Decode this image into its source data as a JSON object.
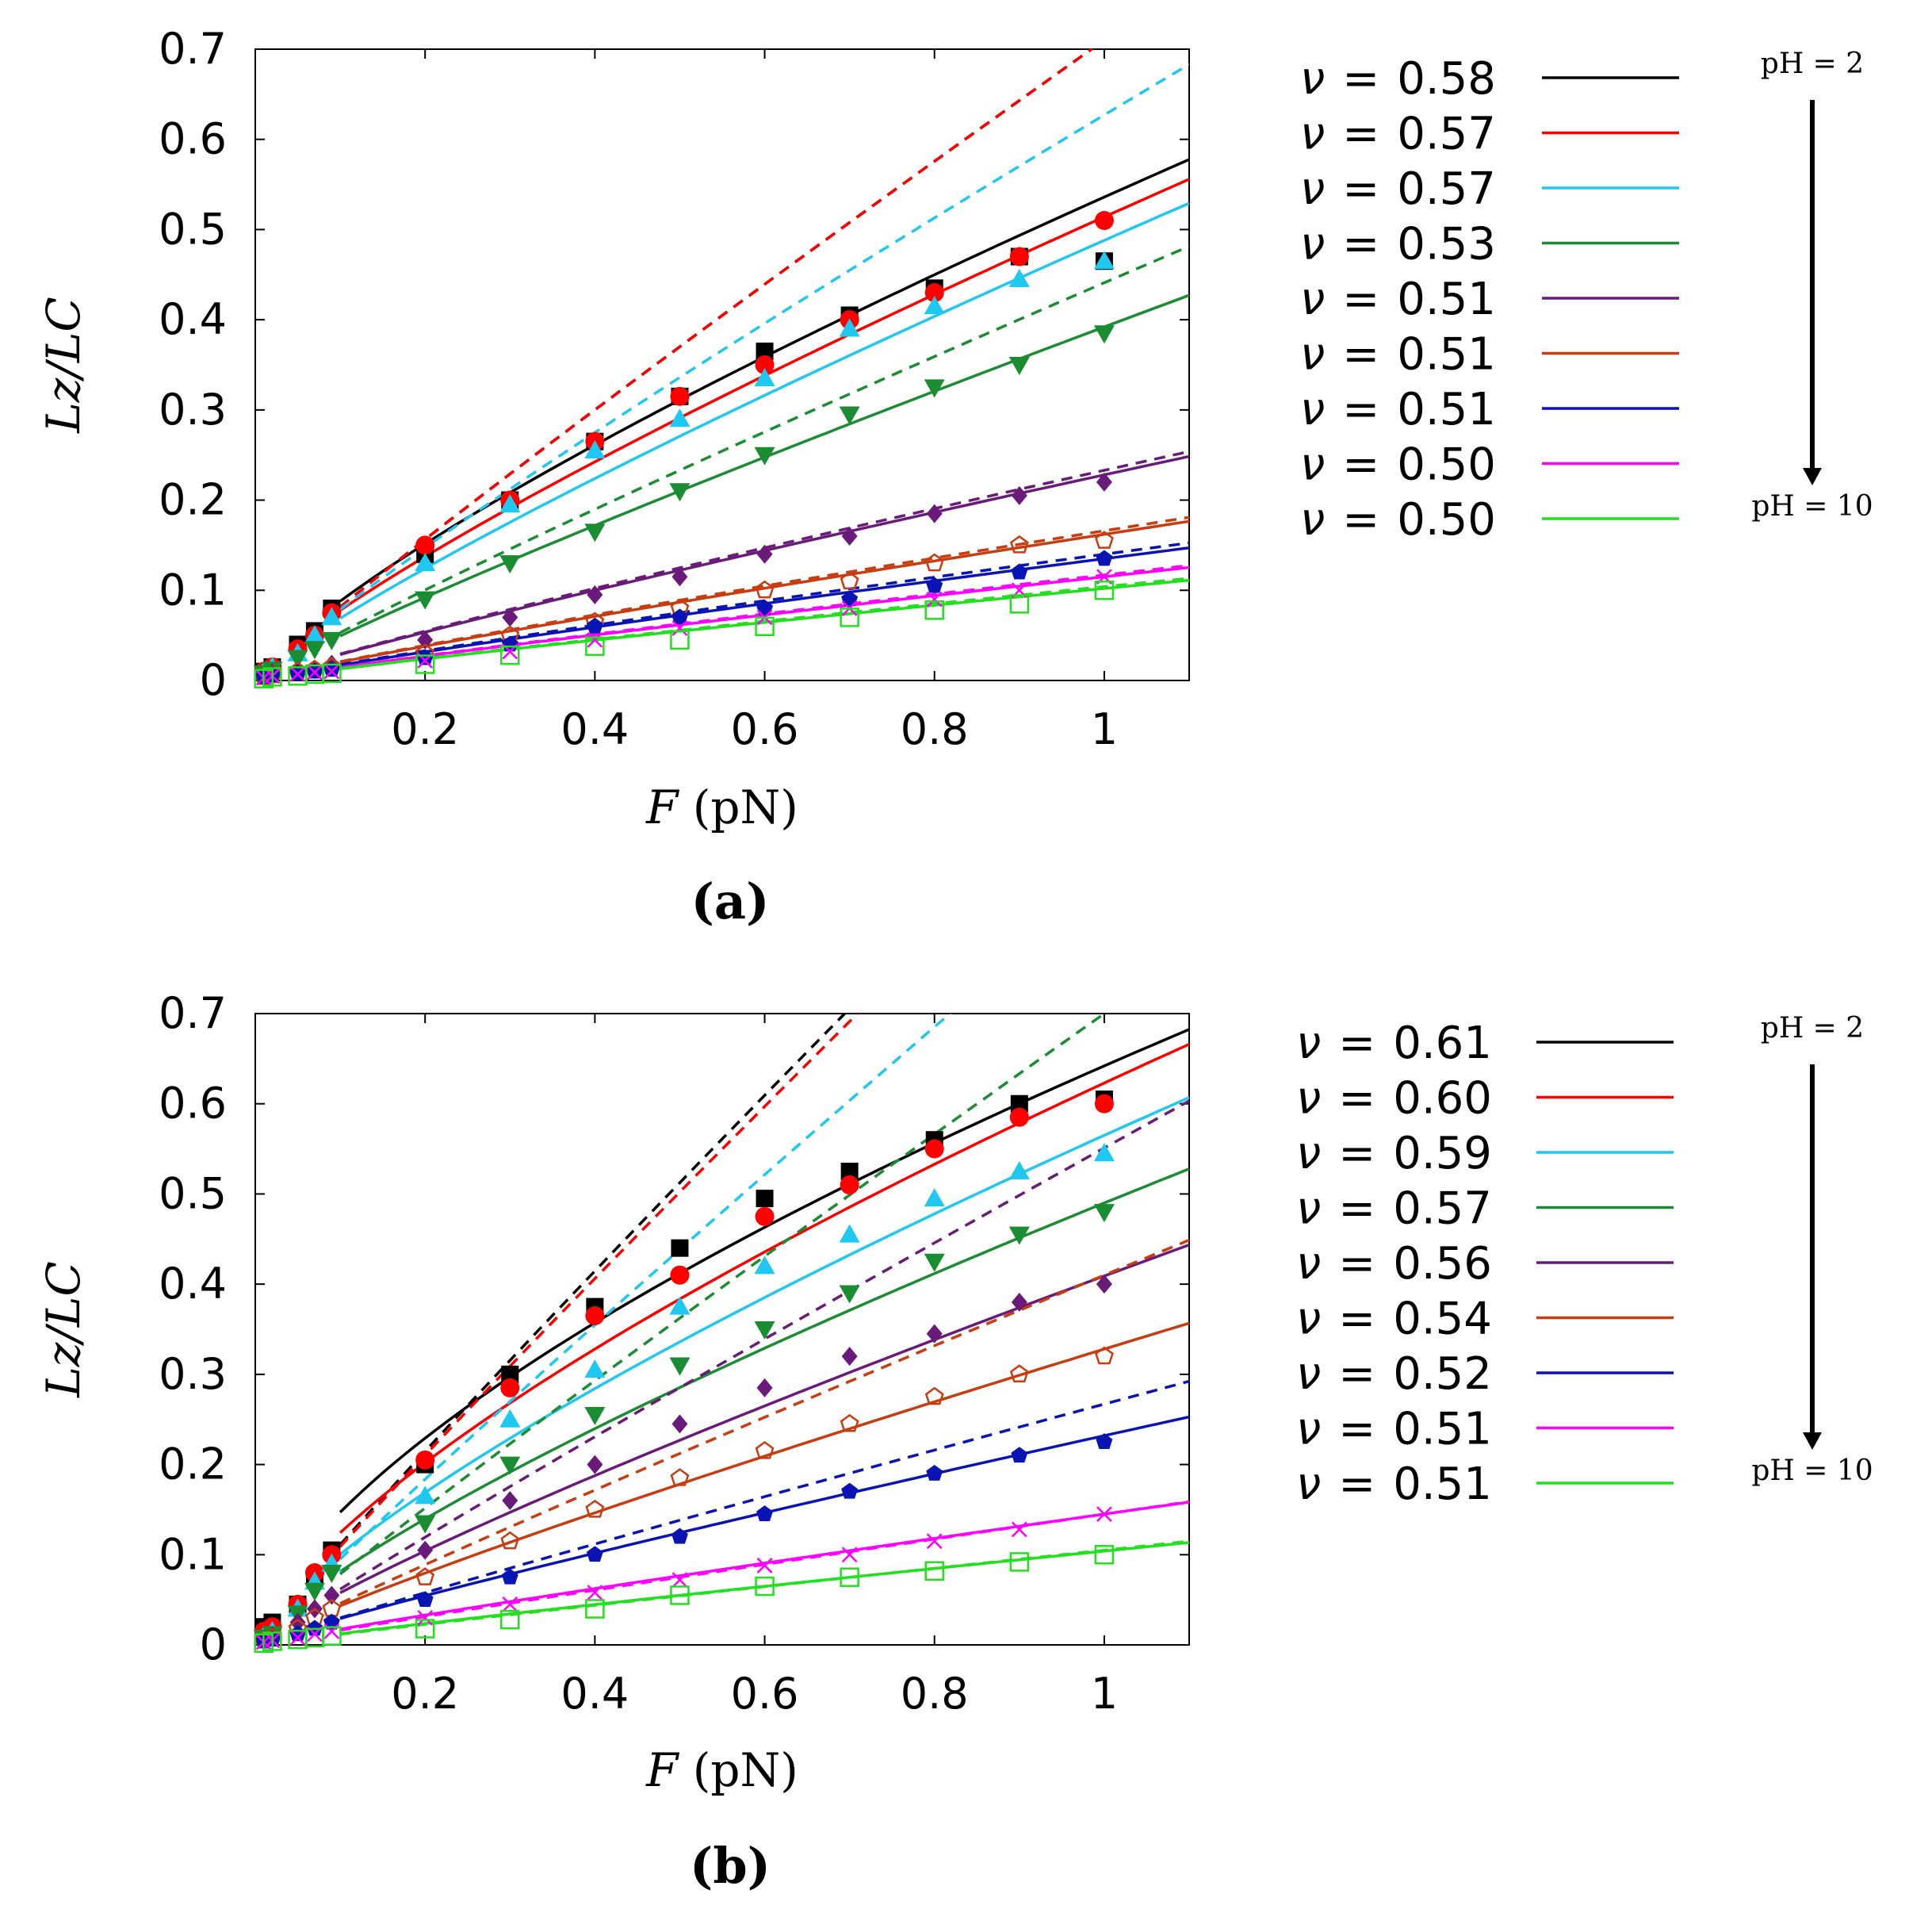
{
  "x_ticks": [
    {
      "label": "0.2",
      "value": 0.2
    },
    {
      "label": "0.4",
      "value": 0.4
    },
    {
      "label": "0.6",
      "value": 0.6
    },
    {
      "label": "0.8",
      "value": 0.8
    },
    {
      "label": "1",
      "value": 1.0
    }
  ],
  "y_ticks": [
    {
      "label": "0",
      "value": 0.0
    },
    {
      "label": "0.1",
      "value": 0.1
    },
    {
      "label": "0.2",
      "value": 0.2
    },
    {
      "label": "0.3",
      "value": 0.3
    },
    {
      "label": "0.4",
      "value": 0.4
    },
    {
      "label": "0.5",
      "value": 0.5
    },
    {
      "label": "0.6",
      "value": 0.6
    },
    {
      "label": "0.7",
      "value": 0.7
    }
  ],
  "x_all": [
    0.01,
    0.02,
    0.05,
    0.07,
    0.09,
    0.2,
    0.3,
    0.4,
    0.5,
    0.6,
    0.7,
    0.8,
    0.9,
    1.0
  ],
  "chart_data": [
    {
      "type": "scatter",
      "panel_label": "(a)",
      "xlabel_italic": "F",
      "xlabel_rest": " (pN)",
      "ylabel": "Lz/LC",
      "xlim": [
        0,
        1.1
      ],
      "ylim": [
        0,
        0.7
      ],
      "legend_symbol": "ν",
      "ph_top": "pH = 2",
      "ph_bottom": "pH = 10",
      "series": [
        {
          "name": "ν = 0.58",
          "nu": "0.58",
          "color": "#000000",
          "marker": "square",
          "filled": true,
          "y": [
            0.01,
            0.015,
            0.04,
            0.055,
            0.08,
            0.14,
            0.2,
            0.265,
            0.315,
            0.365,
            0.405,
            0.435,
            0.47,
            0.465
          ],
          "fit_a": 0.536,
          "fit_b": 0.785,
          "dash_a": 0.71,
          "dash_b": 0.94
        },
        {
          "name": "ν = 0.57",
          "nu": "0.57",
          "color": "#ff0000",
          "marker": "circle",
          "filled": true,
          "y": [
            0.01,
            0.015,
            0.035,
            0.05,
            0.075,
            0.15,
            0.2,
            0.265,
            0.315,
            0.35,
            0.4,
            0.43,
            0.47,
            0.51
          ],
          "fit_a": 0.514,
          "fit_b": 0.82,
          "dash_a": 0.71,
          "dash_b": 0.94
        },
        {
          "name": "ν = 0.57",
          "nu": "0.57",
          "color": "#1ec8f0",
          "marker": "triangle-up",
          "filled": true,
          "y": [
            0.01,
            0.015,
            0.03,
            0.05,
            0.07,
            0.13,
            0.195,
            0.255,
            0.29,
            0.335,
            0.39,
            0.415,
            0.445,
            0.465
          ],
          "fit_a": 0.488,
          "fit_b": 0.85,
          "dash_a": 0.627,
          "dash_b": 0.9
        },
        {
          "name": "ν = 0.53",
          "nu": "0.53",
          "color": "#1a8c32",
          "marker": "triangle-down",
          "filled": true,
          "y": [
            0.008,
            0.012,
            0.025,
            0.035,
            0.045,
            0.09,
            0.13,
            0.165,
            0.21,
            0.25,
            0.295,
            0.325,
            0.35,
            0.385
          ],
          "fit_a": 0.392,
          "fit_b": 0.9,
          "dash_a": 0.441,
          "dash_b": 0.92
        },
        {
          "name": "ν = 0.51",
          "nu": "0.51",
          "color": "#6a1b7a",
          "marker": "diamond",
          "filled": true,
          "y": [
            0.005,
            0.008,
            0.01,
            0.012,
            0.018,
            0.045,
            0.07,
            0.095,
            0.115,
            0.14,
            0.16,
            0.185,
            0.205,
            0.22
          ],
          "fit_a": 0.228,
          "fit_b": 0.9,
          "dash_a": 0.233,
          "dash_b": 0.9
        },
        {
          "name": "ν = 0.51",
          "nu": "0.51",
          "color": "#c83c10",
          "marker": "pentagon",
          "filled": false,
          "y": [
            0.004,
            0.006,
            0.01,
            0.012,
            0.015,
            0.03,
            0.05,
            0.065,
            0.08,
            0.1,
            0.11,
            0.13,
            0.15,
            0.155
          ],
          "fit_a": 0.162,
          "fit_b": 0.9,
          "dash_a": 0.166,
          "dash_b": 0.9
        },
        {
          "name": "ν = 0.51",
          "nu": "0.51",
          "color": "#0a14b4",
          "marker": "pentagon",
          "filled": true,
          "y": [
            0.004,
            0.006,
            0.008,
            0.01,
            0.012,
            0.025,
            0.04,
            0.06,
            0.07,
            0.08,
            0.09,
            0.105,
            0.12,
            0.135
          ],
          "fit_a": 0.135,
          "fit_b": 0.9,
          "dash_a": 0.14,
          "dash_b": 0.9
        },
        {
          "name": "ν = 0.50",
          "nu": "0.50",
          "color": "#ff00ff",
          "marker": "x",
          "filled": false,
          "y": [
            0.003,
            0.005,
            0.007,
            0.009,
            0.01,
            0.022,
            0.032,
            0.045,
            0.058,
            0.07,
            0.08,
            0.09,
            0.1,
            0.115
          ],
          "fit_a": 0.115,
          "fit_b": 0.9,
          "dash_a": 0.117,
          "dash_b": 0.9
        },
        {
          "name": "ν = 0.50",
          "nu": "0.50",
          "color": "#22e01e",
          "marker": "square",
          "filled": false,
          "y": [
            0.002,
            0.004,
            0.005,
            0.007,
            0.008,
            0.018,
            0.028,
            0.038,
            0.045,
            0.06,
            0.07,
            0.078,
            0.085,
            0.1
          ],
          "fit_a": 0.102,
          "fit_b": 0.9,
          "dash_a": 0.104,
          "dash_b": 0.9
        }
      ]
    },
    {
      "type": "scatter",
      "panel_label": "(b)",
      "xlabel_italic": "F",
      "xlabel_rest": " (pN)",
      "ylabel": "Lz/LC",
      "xlim": [
        0,
        1.1
      ],
      "ylim": [
        0,
        0.7
      ],
      "legend_symbol": "ν",
      "ph_top": "pH = 2",
      "ph_bottom": "pH = 10",
      "series": [
        {
          "name": "ν = 0.61",
          "nu": "0.61",
          "color": "#000000",
          "marker": "square",
          "filled": true,
          "y": [
            0.02,
            0.025,
            0.045,
            0.075,
            0.105,
            0.2,
            0.3,
            0.375,
            0.44,
            0.495,
            0.525,
            0.56,
            0.6,
            0.605
          ],
          "fit_a": 0.642,
          "fit_b": 0.64,
          "dash_a": 0.99,
          "dash_b": 0.95
        },
        {
          "name": "ν = 0.60",
          "nu": "0.60",
          "color": "#ff0000",
          "marker": "circle",
          "filled": true,
          "y": [
            0.015,
            0.02,
            0.045,
            0.08,
            0.1,
            0.205,
            0.285,
            0.365,
            0.41,
            0.475,
            0.51,
            0.55,
            0.585,
            0.6
          ],
          "fit_a": 0.623,
          "fit_b": 0.7,
          "dash_a": 0.97,
          "dash_b": 0.95
        },
        {
          "name": "ν = 0.59",
          "nu": "0.59",
          "color": "#1ec8f0",
          "marker": "triangle-up",
          "filled": true,
          "y": [
            0.01,
            0.015,
            0.04,
            0.07,
            0.09,
            0.165,
            0.25,
            0.305,
            0.375,
            0.42,
            0.455,
            0.495,
            0.525,
            0.545
          ],
          "fit_a": 0.565,
          "fit_b": 0.75,
          "dash_a": 0.847,
          "dash_b": 0.95
        },
        {
          "name": "ν = 0.57",
          "nu": "0.57",
          "color": "#1a8c32",
          "marker": "triangle-down",
          "filled": true,
          "y": [
            0.008,
            0.012,
            0.035,
            0.06,
            0.08,
            0.135,
            0.2,
            0.255,
            0.31,
            0.35,
            0.39,
            0.425,
            0.455,
            0.48
          ],
          "fit_a": 0.49,
          "fit_b": 0.78,
          "dash_a": 0.7,
          "dash_b": 0.95
        },
        {
          "name": "ν = 0.56",
          "nu": "0.56",
          "color": "#6a1b7a",
          "marker": "diamond",
          "filled": true,
          "y": [
            0.006,
            0.01,
            0.025,
            0.04,
            0.055,
            0.105,
            0.16,
            0.2,
            0.245,
            0.285,
            0.32,
            0.345,
            0.38,
            0.4
          ],
          "fit_a": 0.409,
          "fit_b": 0.85,
          "dash_a": 0.551,
          "dash_b": 0.95
        },
        {
          "name": "ν = 0.54",
          "nu": "0.54",
          "color": "#c83c10",
          "marker": "pentagon",
          "filled": false,
          "y": [
            0.005,
            0.008,
            0.018,
            0.03,
            0.04,
            0.075,
            0.115,
            0.15,
            0.185,
            0.215,
            0.245,
            0.275,
            0.3,
            0.32
          ],
          "fit_a": 0.328,
          "fit_b": 0.88,
          "dash_a": 0.41,
          "dash_b": 0.95
        },
        {
          "name": "ν = 0.52",
          "nu": "0.52",
          "color": "#0a14b4",
          "marker": "pentagon",
          "filled": true,
          "y": [
            0.004,
            0.006,
            0.012,
            0.018,
            0.025,
            0.05,
            0.075,
            0.1,
            0.12,
            0.145,
            0.17,
            0.19,
            0.21,
            0.225
          ],
          "fit_a": 0.232,
          "fit_b": 0.9,
          "dash_a": 0.267,
          "dash_b": 0.95
        },
        {
          "name": "ν = 0.51",
          "nu": "0.51",
          "color": "#ff00ff",
          "marker": "x",
          "filled": false,
          "y": [
            0.003,
            0.005,
            0.008,
            0.012,
            0.015,
            0.03,
            0.045,
            0.058,
            0.072,
            0.088,
            0.1,
            0.115,
            0.128,
            0.145
          ],
          "fit_a": 0.145,
          "fit_b": 0.92,
          "dash_a": 0.145,
          "dash_b": 0.95
        },
        {
          "name": "ν = 0.51",
          "nu": "0.51",
          "color": "#22e01e",
          "marker": "square",
          "filled": false,
          "y": [
            0.002,
            0.004,
            0.006,
            0.008,
            0.01,
            0.018,
            0.028,
            0.04,
            0.055,
            0.065,
            0.075,
            0.082,
            0.092,
            0.1
          ],
          "fit_a": 0.104,
          "fit_b": 0.92,
          "dash_a": 0.105,
          "dash_b": 0.95
        }
      ]
    }
  ]
}
